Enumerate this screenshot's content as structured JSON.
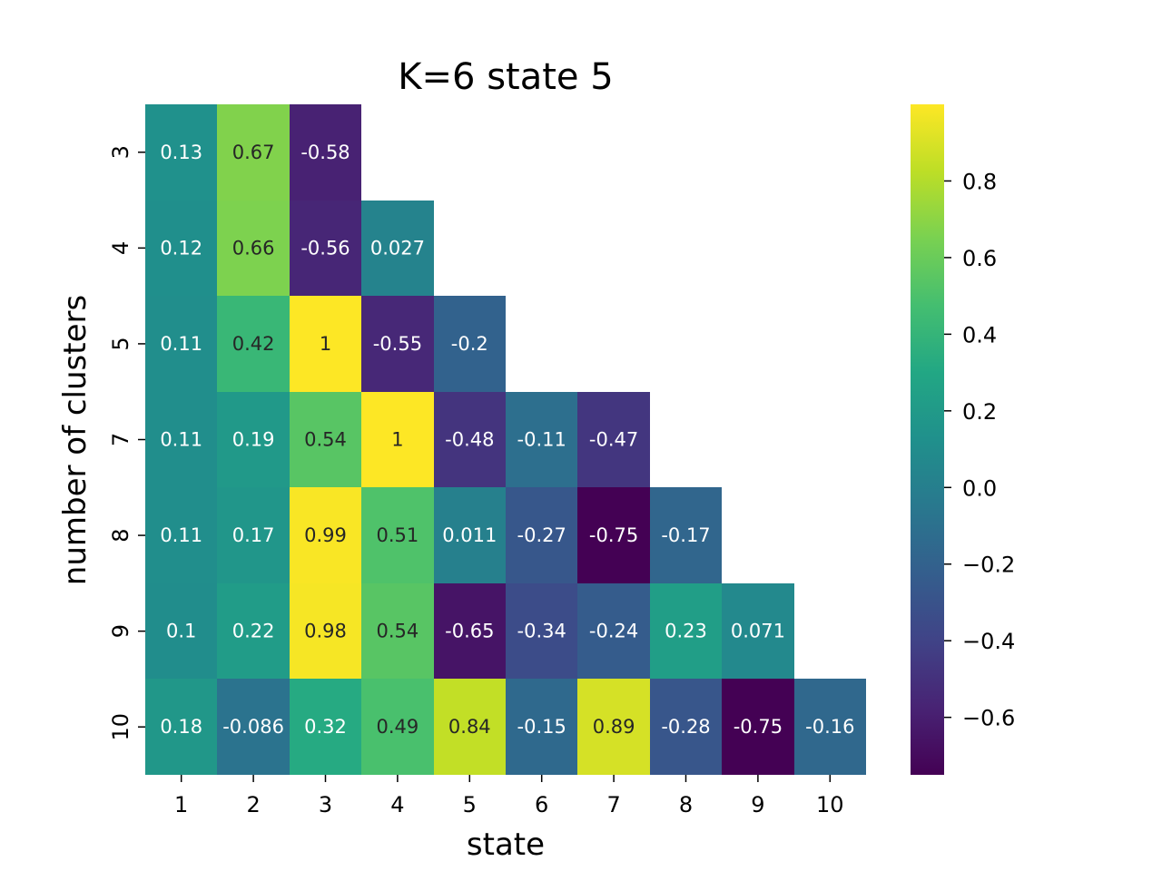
{
  "chart_data": {
    "type": "heatmap",
    "title": "K=6 state 5",
    "xlabel": "state",
    "ylabel": "number of clusters",
    "x": [
      "1",
      "2",
      "3",
      "4",
      "5",
      "6",
      "7",
      "8",
      "9",
      "10"
    ],
    "y": [
      "3",
      "4",
      "5",
      "7",
      "8",
      "9",
      "10"
    ],
    "values": [
      [
        0.13,
        0.67,
        -0.58,
        null,
        null,
        null,
        null,
        null,
        null,
        null
      ],
      [
        0.12,
        0.66,
        -0.56,
        0.027,
        null,
        null,
        null,
        null,
        null,
        null
      ],
      [
        0.11,
        0.42,
        1,
        -0.55,
        -0.2,
        null,
        null,
        null,
        null,
        null
      ],
      [
        0.11,
        0.19,
        0.54,
        1,
        -0.48,
        -0.11,
        -0.47,
        null,
        null,
        null
      ],
      [
        0.11,
        0.17,
        0.99,
        0.51,
        0.011,
        -0.27,
        -0.75,
        -0.17,
        null,
        null
      ],
      [
        0.1,
        0.22,
        0.98,
        0.54,
        -0.65,
        -0.34,
        -0.24,
        0.23,
        0.071,
        null
      ],
      [
        0.18,
        -0.086,
        0.32,
        0.49,
        0.84,
        -0.15,
        0.89,
        -0.28,
        -0.75,
        -0.16
      ]
    ],
    "colormap": "viridis",
    "vmin": -0.75,
    "vmax": 1,
    "colorbar_ticks": [
      "−0.6",
      "−0.4",
      "−0.2",
      "0.0",
      "0.2",
      "0.4",
      "0.6",
      "0.8"
    ],
    "colorbar_tick_values": [
      -0.6,
      -0.4,
      -0.2,
      0.0,
      0.2,
      0.4,
      0.6,
      0.8
    ],
    "annotated": true
  }
}
